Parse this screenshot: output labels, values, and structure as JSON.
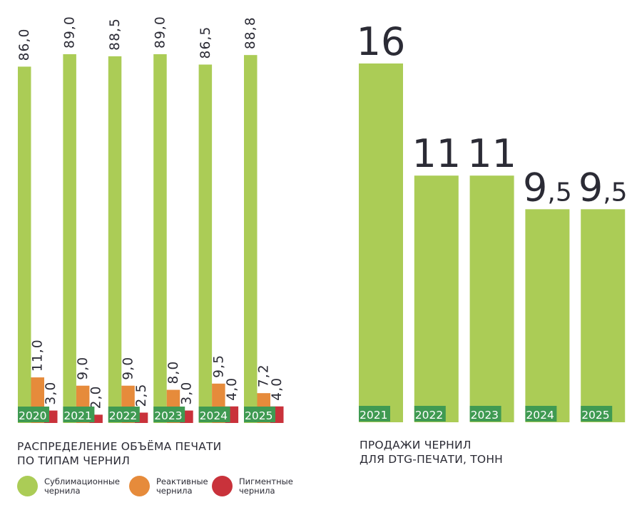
{
  "colors": {
    "sublimation": "#abcc56",
    "reactive": "#e68b3b",
    "pigment": "#c9323b",
    "year_tag_bg": "#3f9a52",
    "year_tag_text": "#ffffff",
    "text": "#2b2b35"
  },
  "chart_data": [
    {
      "type": "bar",
      "title": "РАСПРЕДЕЛЕНИЕ ОБЪЁМА ПЕЧАТИ\nПО ТИПАМ ЧЕРНИЛ",
      "categories": [
        "2020",
        "2021",
        "2022",
        "2023",
        "2024",
        "2025"
      ],
      "series": [
        {
          "name": "Сублимационные\nчернила",
          "values": [
            86.0,
            89.0,
            88.5,
            89.0,
            86.5,
            88.8
          ],
          "labels": [
            "86,0",
            "89,0",
            "88,5",
            "89,0",
            "86,5",
            "88,8"
          ]
        },
        {
          "name": "Реактивные\nчернила",
          "values": [
            11.0,
            9.0,
            9.0,
            8.0,
            9.5,
            7.2
          ],
          "labels": [
            "11,0",
            "9,0",
            "9,0",
            "8,0",
            "9,5",
            "7,2"
          ]
        },
        {
          "name": "Пигментные\nчернила",
          "values": [
            3.0,
            2.0,
            2.5,
            3.0,
            4.0,
            4.0
          ],
          "labels": [
            "3,0",
            "2,0",
            "2,5",
            "3,0",
            "4,0",
            "4,0"
          ]
        }
      ],
      "ylim": [
        0,
        89
      ],
      "value_label_orientation": "vertical",
      "grid": false,
      "legend_position": "bottom"
    },
    {
      "type": "bar",
      "title": "ПРОДАЖИ ЧЕРНИЛ\nДЛЯ DTG-ПЕЧАТИ, ТОНН",
      "categories": [
        "2021",
        "2022",
        "2023",
        "2024",
        "2025"
      ],
      "values": [
        16,
        11,
        11,
        9.5,
        9.5
      ],
      "labels": [
        {
          "int": "16",
          "frac": ""
        },
        {
          "int": "11",
          "frac": ""
        },
        {
          "int": "11",
          "frac": ""
        },
        {
          "int": "9",
          "frac": ",5"
        },
        {
          "int": "9",
          "frac": ",5"
        }
      ],
      "ylim": [
        0,
        16
      ],
      "grid": false
    }
  ]
}
